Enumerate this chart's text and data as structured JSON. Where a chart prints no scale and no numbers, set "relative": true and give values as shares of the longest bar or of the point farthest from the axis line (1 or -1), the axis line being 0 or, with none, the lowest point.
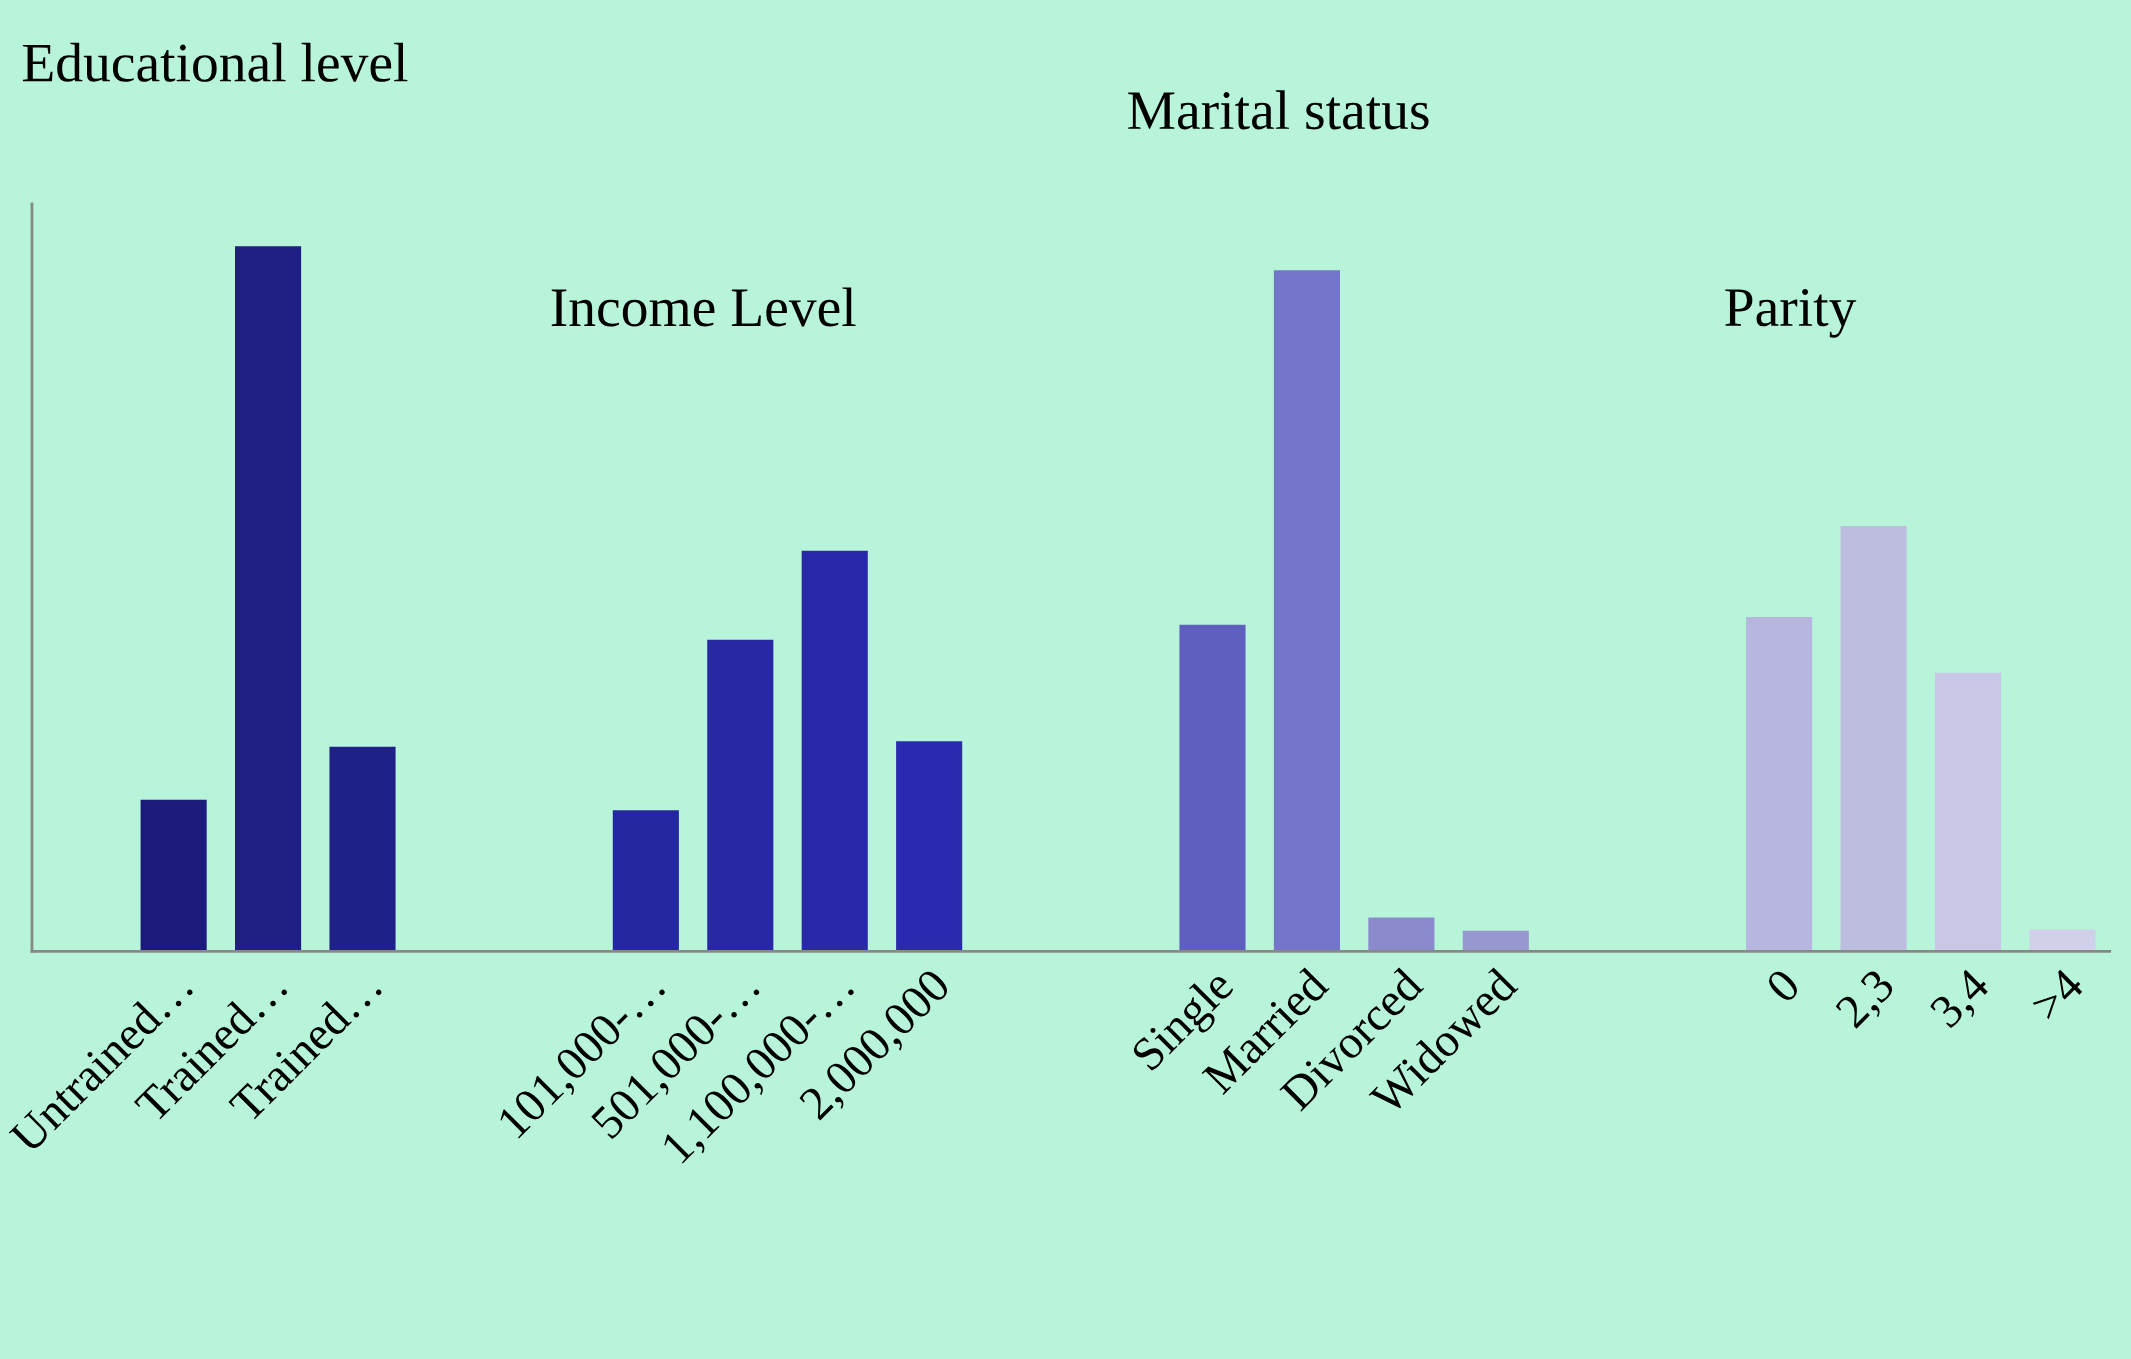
{
  "chart_data": {
    "type": "bar",
    "relative": true,
    "annotations": [
      "Educational level",
      "Marital status",
      "Income Level",
      "Parity"
    ],
    "categories": [
      null,
      "Untrained…",
      "Trained…",
      "Trained…",
      null,
      null,
      "101,000-…",
      "501,000-…",
      "1,100,000-…",
      "2,000,000",
      null,
      null,
      "Single",
      "Married",
      "Divorced",
      "Widowed",
      null,
      null,
      "0",
      "2,3",
      "3,4",
      ">4"
    ],
    "values": [
      null,
      0.215,
      1,
      0.29,
      null,
      null,
      0.2,
      0.442,
      0.568,
      0.298,
      null,
      null,
      0.463,
      0.966,
      0.048,
      0.029,
      null,
      null,
      0.474,
      0.603,
      0.395,
      0.031
    ],
    "colors": [
      "#1c1a7a",
      "#1c1a7a",
      "#1f1e82",
      "#1f2088",
      "#1f2088",
      "#2527a0",
      "#2527a0",
      "#2828a5",
      "#2828a8",
      "#2a2ab0",
      "#2a2ab0",
      "#5f5fc0",
      "#5f5fc0",
      "#7474c8",
      "#8a8acc",
      "#9898d0",
      "#9898d0",
      "#b6b6de",
      "#b6b6de",
      "#bdbde0",
      "#c8c8e6",
      "#d0d0ea"
    ],
    "grid": false,
    "legend": false
  }
}
